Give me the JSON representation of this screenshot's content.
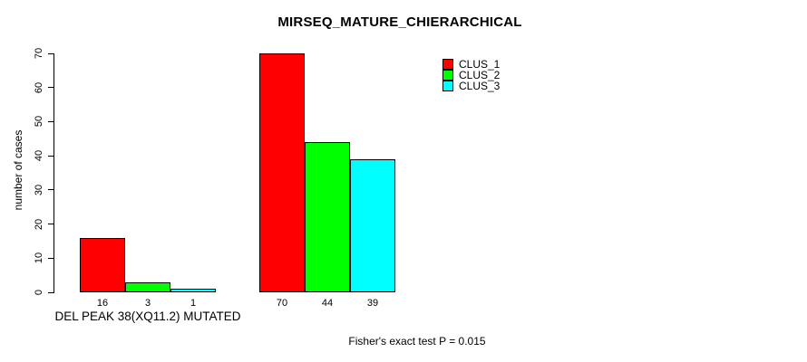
{
  "chart_data": {
    "type": "bar",
    "title": "MIRSEQ_MATURE_CHIERARCHICAL",
    "ylabel": "number of cases",
    "xlabel": "",
    "ylim": [
      0,
      70
    ],
    "yticks": [
      0,
      10,
      20,
      30,
      40,
      50,
      60,
      70
    ],
    "grid": false,
    "legend_position": "top-right",
    "groups": [
      {
        "label": "DEL PEAK 38(XQ11.2) MUTATED",
        "values": [
          16,
          3,
          1
        ]
      },
      {
        "label": "",
        "values": [
          70,
          44,
          39
        ]
      }
    ],
    "series": [
      {
        "name": "CLUS_1",
        "color": "#ff0000"
      },
      {
        "name": "CLUS_2",
        "color": "#00ff00"
      },
      {
        "name": "CLUS_3",
        "color": "#00ffff"
      }
    ],
    "annotation": "Fisher's exact test P = 0.015"
  }
}
